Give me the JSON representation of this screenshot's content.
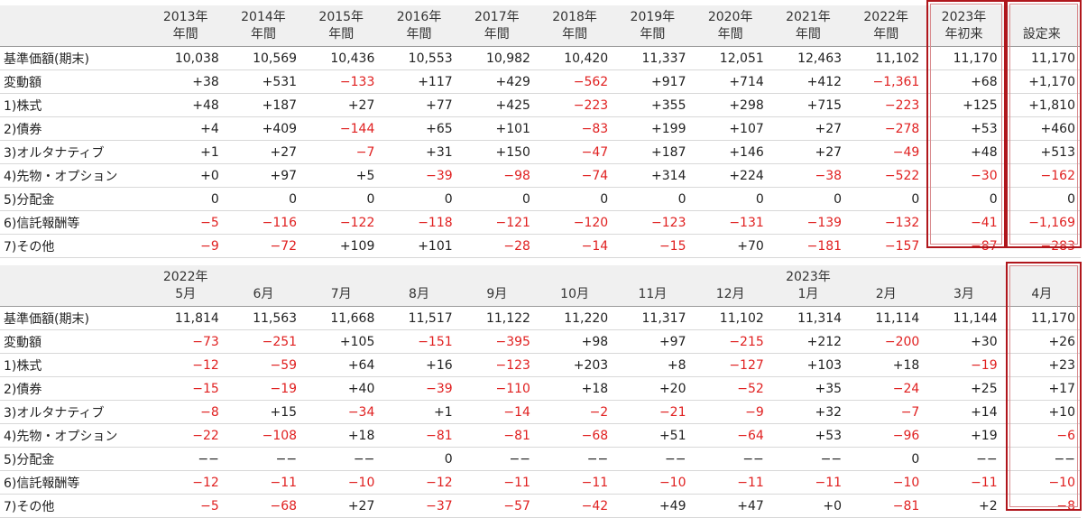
{
  "annual": {
    "headers": [
      [
        "2013年",
        "年間"
      ],
      [
        "2014年",
        "年間"
      ],
      [
        "2015年",
        "年間"
      ],
      [
        "2016年",
        "年間"
      ],
      [
        "2017年",
        "年間"
      ],
      [
        "2018年",
        "年間"
      ],
      [
        "2019年",
        "年間"
      ],
      [
        "2020年",
        "年間"
      ],
      [
        "2021年",
        "年間"
      ],
      [
        "2022年",
        "年間"
      ],
      [
        "2023年",
        "年初来"
      ],
      [
        "",
        "設定来"
      ]
    ],
    "rows": [
      {
        "label": "基準価額(期末)",
        "values": [
          "10,038",
          "10,569",
          "10,436",
          "10,553",
          "10,982",
          "10,420",
          "11,337",
          "12,051",
          "12,463",
          "11,102",
          "11,170",
          "11,170"
        ]
      },
      {
        "label": "変動額",
        "values": [
          "+38",
          "+531",
          "−133",
          "+117",
          "+429",
          "−562",
          "+917",
          "+714",
          "+412",
          "−1,361",
          "+68",
          "+1,170"
        ]
      },
      {
        "label": "1)株式",
        "values": [
          "+48",
          "+187",
          "+27",
          "+77",
          "+425",
          "−223",
          "+355",
          "+298",
          "+715",
          "−223",
          "+125",
          "+1,810"
        ]
      },
      {
        "label": "2)債券",
        "values": [
          "+4",
          "+409",
          "−144",
          "+65",
          "+101",
          "−83",
          "+199",
          "+107",
          "+27",
          "−278",
          "+53",
          "+460"
        ]
      },
      {
        "label": "3)オルタナティブ",
        "values": [
          "+1",
          "+27",
          "−7",
          "+31",
          "+150",
          "−47",
          "+187",
          "+146",
          "+27",
          "−49",
          "+48",
          "+513"
        ]
      },
      {
        "label": "4)先物・オプション",
        "values": [
          "+0",
          "+97",
          "+5",
          "−39",
          "−98",
          "−74",
          "+314",
          "+224",
          "−38",
          "−522",
          "−30",
          "−162"
        ]
      },
      {
        "label": "5)分配金",
        "values": [
          "0",
          "0",
          "0",
          "0",
          "0",
          "0",
          "0",
          "0",
          "0",
          "0",
          "0",
          "0"
        ]
      },
      {
        "label": "6)信託報酬等",
        "values": [
          "−5",
          "−116",
          "−122",
          "−118",
          "−121",
          "−120",
          "−123",
          "−131",
          "−139",
          "−132",
          "−41",
          "−1,169"
        ]
      },
      {
        "label": "7)その他",
        "values": [
          "−9",
          "−72",
          "+109",
          "+101",
          "−28",
          "−14",
          "−15",
          "+70",
          "−181",
          "−157",
          "−87",
          "−283"
        ]
      }
    ]
  },
  "monthly": {
    "headers": [
      [
        "2022年",
        "5月"
      ],
      [
        "",
        "6月"
      ],
      [
        "",
        "7月"
      ],
      [
        "",
        "8月"
      ],
      [
        "",
        "9月"
      ],
      [
        "",
        "10月"
      ],
      [
        "",
        "11月"
      ],
      [
        "",
        "12月"
      ],
      [
        "2023年",
        "1月"
      ],
      [
        "",
        "2月"
      ],
      [
        "",
        "3月"
      ],
      [
        "",
        "4月"
      ]
    ],
    "rows": [
      {
        "label": "基準価額(期末)",
        "values": [
          "11,814",
          "11,563",
          "11,668",
          "11,517",
          "11,122",
          "11,220",
          "11,317",
          "11,102",
          "11,314",
          "11,114",
          "11,144",
          "11,170"
        ]
      },
      {
        "label": "変動額",
        "values": [
          "−73",
          "−251",
          "+105",
          "−151",
          "−395",
          "+98",
          "+97",
          "−215",
          "+212",
          "−200",
          "+30",
          "+26"
        ]
      },
      {
        "label": "1)株式",
        "values": [
          "−12",
          "−59",
          "+64",
          "+16",
          "−123",
          "+203",
          "+8",
          "−127",
          "+103",
          "+18",
          "−19",
          "+23"
        ]
      },
      {
        "label": "2)債券",
        "values": [
          "−15",
          "−19",
          "+40",
          "−39",
          "−110",
          "+18",
          "+20",
          "−52",
          "+35",
          "−24",
          "+25",
          "+17"
        ]
      },
      {
        "label": "3)オルタナティブ",
        "values": [
          "−8",
          "+15",
          "−34",
          "+1",
          "−14",
          "−2",
          "−21",
          "−9",
          "+32",
          "−7",
          "+14",
          "+10"
        ]
      },
      {
        "label": "4)先物・オプション",
        "values": [
          "−22",
          "−108",
          "+18",
          "−81",
          "−81",
          "−68",
          "+51",
          "−64",
          "+53",
          "−96",
          "+19",
          "−6"
        ]
      },
      {
        "label": "5)分配金",
        "values": [
          "−−",
          "−−",
          "−−",
          "0",
          "−−",
          "−−",
          "−−",
          "−−",
          "−−",
          "0",
          "−−",
          "−−"
        ]
      },
      {
        "label": "6)信託報酬等",
        "values": [
          "−12",
          "−11",
          "−10",
          "−12",
          "−11",
          "−11",
          "−10",
          "−11",
          "−11",
          "−10",
          "−11",
          "−10"
        ]
      },
      {
        "label": "7)その他",
        "values": [
          "−5",
          "−68",
          "+27",
          "−37",
          "−57",
          "−42",
          "+49",
          "+47",
          "+0",
          "−81",
          "+2",
          "−8"
        ]
      }
    ]
  },
  "colors": {
    "negative": "#e02020",
    "highlight_border": "#b0161c",
    "header_bg": "#f0f0f0"
  }
}
